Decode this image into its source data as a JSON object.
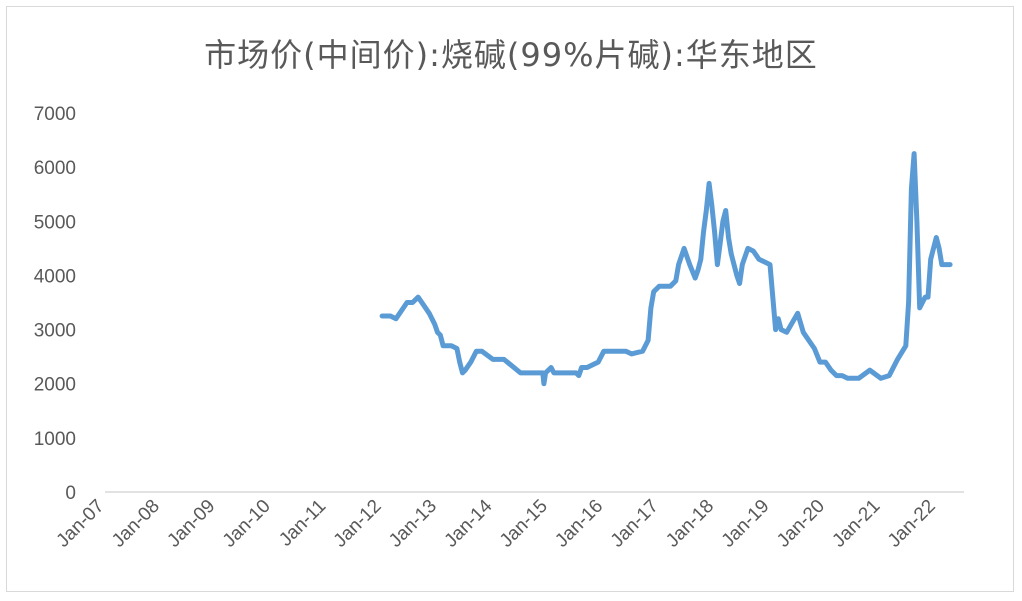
{
  "chart_data": {
    "type": "line",
    "title": "市场价(中间价):烧碱(99%片碱):华东地区",
    "xlabel": "",
    "ylabel": "",
    "ylim": [
      0,
      7000
    ],
    "yticks": [
      0,
      1000,
      2000,
      3000,
      4000,
      5000,
      6000,
      7000
    ],
    "xticks": [
      "Jan-07",
      "Jan-08",
      "Jan-09",
      "Jan-10",
      "Jan-11",
      "Jan-12",
      "Jan-13",
      "Jan-14",
      "Jan-15",
      "Jan-16",
      "Jan-17",
      "Jan-18",
      "Jan-19",
      "Jan-20",
      "Jan-21",
      "Jan-22"
    ],
    "grid": false,
    "legend": "none",
    "line_color": "#5b9bd5",
    "series": [
      {
        "x": [
          2012.0,
          2012.15,
          2012.25,
          2012.35,
          2012.45,
          2012.55,
          2012.65,
          2012.75,
          2012.85,
          2012.95,
          2013.0,
          2013.05,
          2013.1,
          2013.25,
          2013.35,
          2013.4,
          2013.45,
          2013.5,
          2013.6,
          2013.7,
          2013.8,
          2014.0,
          2014.2,
          2014.5,
          2014.9,
          2014.92,
          2014.95,
          2015.05,
          2015.1,
          2015.5,
          2015.55,
          2015.6,
          2015.7,
          2015.8,
          2015.9,
          2016.0,
          2016.4,
          2016.5,
          2016.7,
          2016.8,
          2016.85,
          2016.9,
          2017.0,
          2017.2,
          2017.3,
          2017.35,
          2017.45,
          2017.55,
          2017.65,
          2017.7,
          2017.75,
          2017.8,
          2017.85,
          2017.9,
          2017.95,
          2018.0,
          2018.05,
          2018.1,
          2018.15,
          2018.2,
          2018.25,
          2018.3,
          2018.35,
          2018.4,
          2018.45,
          2018.5,
          2018.6,
          2018.7,
          2018.8,
          2018.9,
          2019.0,
          2019.05,
          2019.1,
          2019.15,
          2019.2,
          2019.3,
          2019.5,
          2019.6,
          2019.7,
          2019.8,
          2019.9,
          2020.0,
          2020.1,
          2020.2,
          2020.3,
          2020.4,
          2020.6,
          2020.8,
          2021.0,
          2021.15,
          2021.3,
          2021.45,
          2021.5,
          2021.55,
          2021.6,
          2021.65,
          2021.7,
          2021.75,
          2021.8,
          2021.85,
          2021.9,
          2022.0,
          2022.05,
          2022.1,
          2022.15,
          2022.2,
          2022.25
        ],
        "values": [
          3250,
          3250,
          3200,
          3350,
          3500,
          3500,
          3600,
          3450,
          3300,
          3100,
          2950,
          2900,
          2700,
          2700,
          2650,
          2400,
          2200,
          2250,
          2400,
          2600,
          2600,
          2450,
          2450,
          2200,
          2200,
          2000,
          2200,
          2300,
          2200,
          2200,
          2150,
          2300,
          2300,
          2350,
          2400,
          2600,
          2600,
          2550,
          2600,
          2800,
          3400,
          3700,
          3800,
          3800,
          3900,
          4200,
          4500,
          4200,
          3950,
          4100,
          4300,
          4800,
          5200,
          5700,
          5300,
          4800,
          4200,
          4600,
          5000,
          5200,
          4700,
          4400,
          4200,
          4000,
          3850,
          4200,
          4500,
          4450,
          4300,
          4250,
          4200,
          3600,
          3000,
          3200,
          3000,
          2950,
          3300,
          2950,
          2800,
          2650,
          2400,
          2400,
          2250,
          2150,
          2150,
          2100,
          2100,
          2250,
          2100,
          2150,
          2450,
          2700,
          3500,
          5600,
          6250,
          5000,
          3400,
          3500,
          3600,
          3600,
          4300,
          4700,
          4500,
          4200,
          4200,
          4200,
          4200
        ]
      }
    ]
  }
}
